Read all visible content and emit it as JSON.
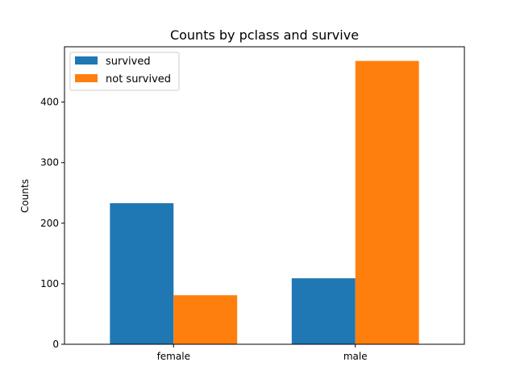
{
  "chart_data": {
    "type": "bar",
    "title": "Counts by pclass and survive",
    "xlabel": "",
    "ylabel": "Counts",
    "categories": [
      "female",
      "male"
    ],
    "series": [
      {
        "name": "survived",
        "values": [
          233,
          109
        ],
        "color": "#1f77b4"
      },
      {
        "name": "not survived",
        "values": [
          81,
          468
        ],
        "color": "#ff7f0e"
      }
    ],
    "yticks": [
      0,
      100,
      200,
      300,
      400
    ],
    "ylim": [
      0,
      491.4
    ],
    "legend": "top-left",
    "grid": false
  }
}
